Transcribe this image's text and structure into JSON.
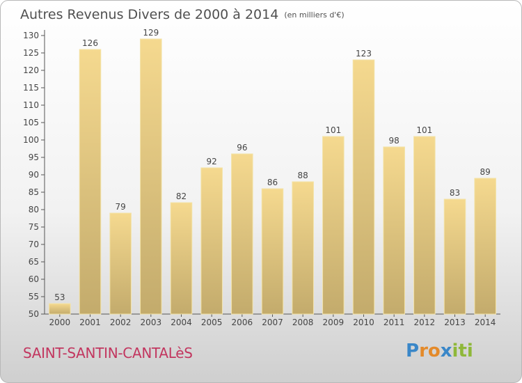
{
  "chart_data": {
    "type": "bar",
    "title": "Autres Revenus Divers de 2000 à 2014",
    "unit": "(en milliers d'€)",
    "categories": [
      "2000",
      "2001",
      "2002",
      "2003",
      "2004",
      "2005",
      "2006",
      "2007",
      "2008",
      "2009",
      "2010",
      "2011",
      "2012",
      "2013",
      "2014"
    ],
    "values": [
      53,
      126,
      79,
      129,
      82,
      92,
      96,
      86,
      88,
      101,
      123,
      98,
      101,
      83,
      89
    ],
    "ylim": [
      50,
      130
    ],
    "yticks": [
      50,
      55,
      60,
      65,
      70,
      75,
      80,
      85,
      90,
      95,
      100,
      105,
      110,
      115,
      120,
      125,
      130
    ],
    "grid": false,
    "bar_color": "#e7c97e"
  },
  "commune": "SAINT-SANTIN-CANTALèS",
  "logo": {
    "letters": [
      "P",
      "r",
      "o",
      "x",
      "i",
      "t",
      "i"
    ],
    "colors": [
      "#3a87c8",
      "#e48a2a",
      "#e48a2a",
      "#3a87c8",
      "#8fb83a",
      "#8fb83a",
      "#8fb83a"
    ]
  }
}
